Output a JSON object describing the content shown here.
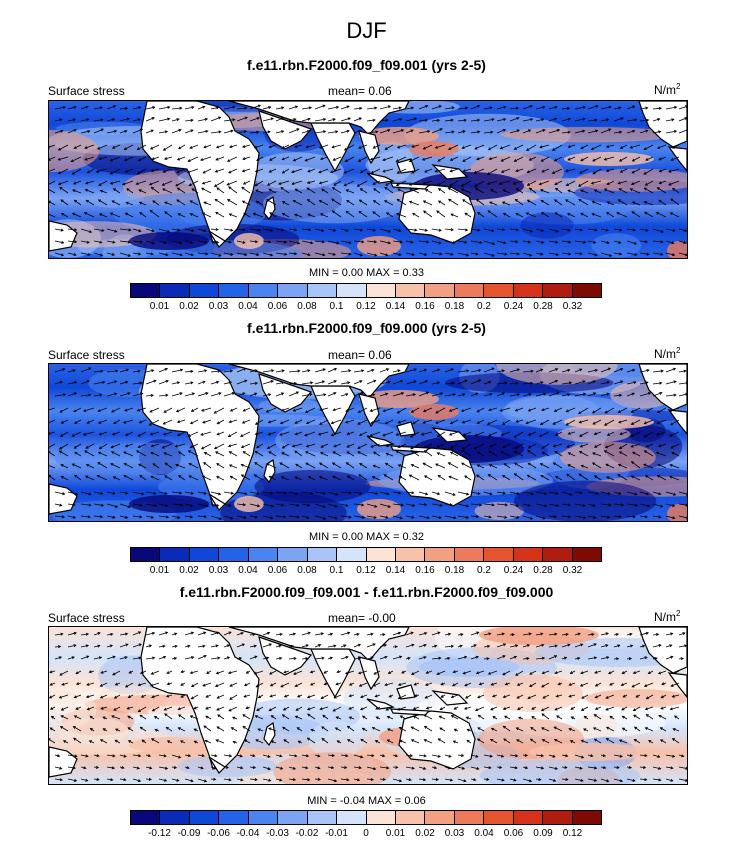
{
  "season_title": "DJF",
  "panels": [
    {
      "title": "f.e11.rbn.F2000.f09_f09.001 (yrs 2-5)",
      "left_label": "Surface stress",
      "mean_label": "mean=",
      "mean_value": "0.06",
      "unit": "N/m",
      "unit_exp": "2",
      "minmax": "MIN =  0.00 MAX =   0.33",
      "kind": "full",
      "colorbar_colors": [
        "#08087a",
        "#0a2ab8",
        "#0e48d8",
        "#2263e8",
        "#4a84f0",
        "#7ca4f4",
        "#a9c4f6",
        "#d4e4fa",
        "#fbe3d6",
        "#f8c1aa",
        "#f39f82",
        "#ee7a5c",
        "#e6532f",
        "#d6321a",
        "#b01c0e",
        "#7e0a04"
      ],
      "colorbar_labels": [
        "0.01",
        "0.02",
        "0.03",
        "0.04",
        "0.06",
        "0.08",
        "0.1",
        "0.12",
        "0.14",
        "0.16",
        "0.18",
        "0.2",
        "0.24",
        "0.28",
        "0.32"
      ]
    },
    {
      "title": "f.e11.rbn.F2000.f09_f09.000 (yrs 2-5)",
      "left_label": "Surface stress",
      "mean_label": "mean=",
      "mean_value": "0.06",
      "unit": "N/m",
      "unit_exp": "2",
      "minmax": "MIN =  0.00 MAX =   0.32",
      "kind": "full",
      "colorbar_colors": [
        "#08087a",
        "#0a2ab8",
        "#0e48d8",
        "#2263e8",
        "#4a84f0",
        "#7ca4f4",
        "#a9c4f6",
        "#d4e4fa",
        "#fbe3d6",
        "#f8c1aa",
        "#f39f82",
        "#ee7a5c",
        "#e6532f",
        "#d6321a",
        "#b01c0e",
        "#7e0a04"
      ],
      "colorbar_labels": [
        "0.01",
        "0.02",
        "0.03",
        "0.04",
        "0.06",
        "0.08",
        "0.1",
        "0.12",
        "0.14",
        "0.16",
        "0.18",
        "0.2",
        "0.24",
        "0.28",
        "0.32"
      ]
    },
    {
      "title": "f.e11.rbn.F2000.f09_f09.001 - f.e11.rbn.F2000.f09_f09.000",
      "left_label": "Surface stress",
      "mean_label": "mean=",
      "mean_value": "-0.00",
      "unit": "N/m",
      "unit_exp": "2",
      "minmax": "MIN = -0.04 MAX =   0.06",
      "kind": "diff",
      "colorbar_colors": [
        "#08087a",
        "#0a2ab8",
        "#0e48d8",
        "#2263e8",
        "#4a84f0",
        "#7ca4f4",
        "#a9c4f6",
        "#d4e4fa",
        "#fbe3d6",
        "#f8c1aa",
        "#f39f82",
        "#ee7a5c",
        "#e6532f",
        "#d6321a",
        "#b01c0e",
        "#7e0a04"
      ],
      "colorbar_labels": [
        "-0.12",
        "-0.09",
        "-0.06",
        "-0.04",
        "-0.03",
        "-0.02",
        "-0.01",
        "0",
        "0.01",
        "0.02",
        "0.03",
        "0.04",
        "0.06",
        "0.09",
        "0.12"
      ]
    }
  ]
}
